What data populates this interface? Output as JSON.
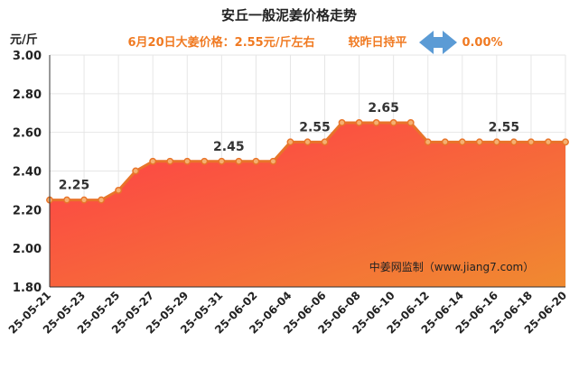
{
  "chart_data": {
    "type": "area",
    "title": "安丘一般泥姜价格走势",
    "subtitle": "6月20日大姜价格：2.55元/斤左右",
    "compare_label": "较昨日持平",
    "change_value": "0.00%",
    "ylabel": "元/斤",
    "ylim": [
      1.8,
      3.0
    ],
    "yticks": [
      "3.00",
      "2.80",
      "2.60",
      "2.40",
      "2.20",
      "2.00",
      "1.80"
    ],
    "grid": true,
    "x": [
      "25-05-21",
      "25-05-22",
      "25-05-23",
      "25-05-24",
      "25-05-25",
      "25-05-26",
      "25-05-27",
      "25-05-28",
      "25-05-29",
      "25-05-30",
      "25-05-31",
      "25-06-01",
      "25-06-02",
      "25-06-03",
      "25-06-04",
      "25-06-05",
      "25-06-06",
      "25-06-07",
      "25-06-08",
      "25-06-09",
      "25-06-10",
      "25-06-11",
      "25-06-12",
      "25-06-13",
      "25-06-14",
      "25-06-15",
      "25-06-16",
      "25-06-17",
      "25-06-18",
      "25-06-19",
      "25-06-20"
    ],
    "xtick_labels": [
      "25-05-21",
      "25-05-23",
      "25-05-25",
      "25-05-27",
      "25-05-29",
      "25-05-31",
      "25-06-02",
      "25-06-04",
      "25-06-06",
      "25-06-08",
      "25-06-10",
      "25-06-12",
      "25-06-14",
      "25-06-16",
      "25-06-18",
      "25-06-20"
    ],
    "values": [
      2.25,
      2.25,
      2.25,
      2.25,
      2.3,
      2.4,
      2.45,
      2.45,
      2.45,
      2.45,
      2.45,
      2.45,
      2.45,
      2.45,
      2.55,
      2.55,
      2.55,
      2.65,
      2.65,
      2.65,
      2.65,
      2.65,
      2.55,
      2.55,
      2.55,
      2.55,
      2.55,
      2.55,
      2.55,
      2.55,
      2.55
    ],
    "data_labels": [
      {
        "index": 1,
        "text": "2.25"
      },
      {
        "index": 10,
        "text": "2.45"
      },
      {
        "index": 15,
        "text": "2.55"
      },
      {
        "index": 19,
        "text": "2.65"
      },
      {
        "index": 26,
        "text": "2.55"
      }
    ],
    "watermark": "中姜网监制（www.jiang7.com）",
    "colors": {
      "line": "#e8742a",
      "marker_fill": "#f5b070",
      "area_top": "#ff3b48",
      "area_bottom": "#f08a30",
      "arrow": "#5b9bd5",
      "grid": "#e6e6e6"
    }
  }
}
